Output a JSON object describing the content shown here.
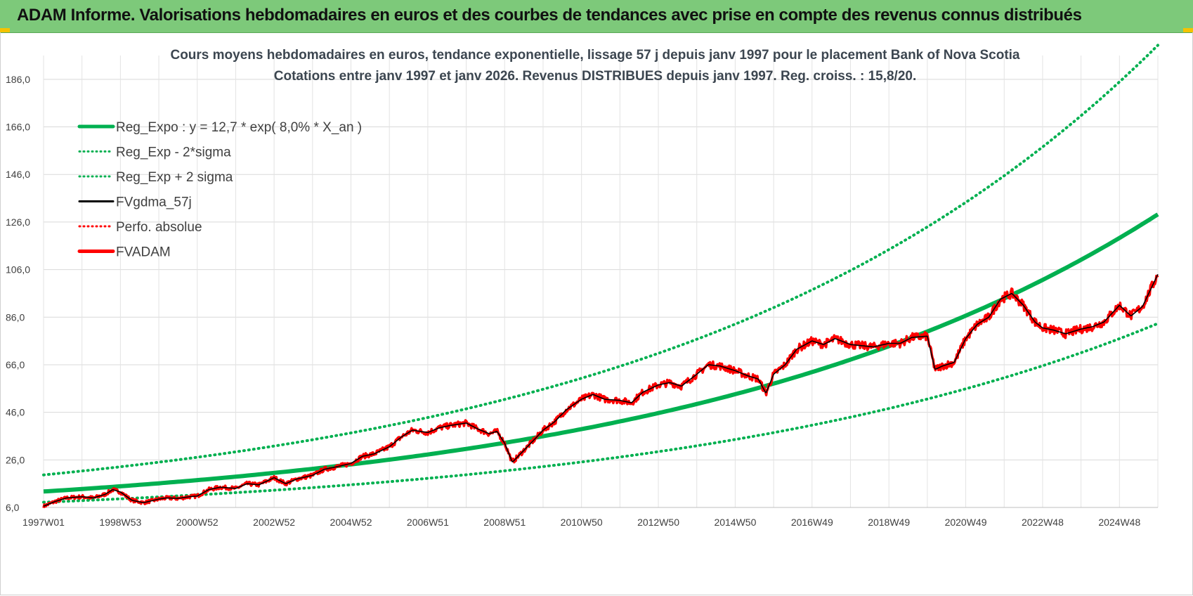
{
  "header": {
    "title": "ADAM Informe. Valorisations hebdomadaires en euros et des courbes de tendances avec prise en compte des revenus connus distribués"
  },
  "chart_data": {
    "type": "line",
    "title_line1": "Cours moyens hebdomadaires en euros, tendance exponentielle, lissage 57 j depuis janv 1997 pour le placement Bank of Nova Scotia",
    "title_line2": "Cotations entre janv 1997 et janv 2026. Revenus DISTRIBUES depuis janv 1997. Reg. croiss. : 15,8/20.",
    "xlim": [
      1997.0,
      2026.0
    ],
    "ylim": [
      6.0,
      196.0
    ],
    "y_ticks": [
      6.0,
      26.0,
      46.0,
      66.0,
      86.0,
      106.0,
      126.0,
      146.0,
      166.0,
      186.0
    ],
    "y_tick_labels": [
      "6,0",
      "26,0",
      "46,0",
      "66,0",
      "86,0",
      "106,0",
      "126,0",
      "146,0",
      "166,0",
      "186,0"
    ],
    "x_ticks": [
      1997.0,
      1999.0,
      2001.0,
      2003.0,
      2005.0,
      2007.0,
      2009.0,
      2011.0,
      2013.0,
      2015.0,
      2017.0,
      2019.0,
      2021.0,
      2023.0,
      2025.0
    ],
    "x_tick_labels": [
      "1997W01",
      "1998W53",
      "2000W52",
      "2002W52",
      "2004W52",
      "2006W51",
      "2008W51",
      "2010W50",
      "2012W50",
      "2014W50",
      "2016W49",
      "2018W49",
      "2020W49",
      "2022W48",
      "2024W48"
    ],
    "grid": true,
    "legend_position": "top-left",
    "regression": {
      "a": 12.7,
      "rate": 0.08,
      "lower_factor": 0.645,
      "upper_factor": 1.55
    },
    "series": [
      {
        "name": "Reg_Expo : y = 12,7 * exp( 8,0% *  X_an )",
        "color": "#00b050",
        "style": "solid-thick"
      },
      {
        "name": "Reg_Exp - 2*sigma",
        "color": "#00b050",
        "style": "dotted"
      },
      {
        "name": "Reg_Exp + 2 sigma",
        "color": "#00b050",
        "style": "dotted"
      },
      {
        "name": "FVgdma_57j",
        "color": "#000000",
        "style": "solid"
      },
      {
        "name": "Perfo. absolue",
        "color": "#ff0000",
        "style": "dotted"
      },
      {
        "name": "FVADAM",
        "color": "#ff0000",
        "style": "solid-thick"
      }
    ],
    "fvadam": {
      "x": [
        1997.0,
        1997.3,
        1997.6,
        1998.0,
        1998.3,
        1998.6,
        1998.8,
        1999.0,
        1999.3,
        1999.6,
        2000.0,
        2000.2,
        2000.5,
        2000.8,
        2001.0,
        2001.3,
        2001.6,
        2002.0,
        2002.3,
        2002.6,
        2002.8,
        2003.0,
        2003.3,
        2003.6,
        2004.0,
        2004.3,
        2004.6,
        2005.0,
        2005.3,
        2005.6,
        2006.0,
        2006.3,
        2006.6,
        2007.0,
        2007.3,
        2007.6,
        2008.0,
        2008.3,
        2008.6,
        2008.8,
        2009.0,
        2009.2,
        2009.5,
        2009.8,
        2010.0,
        2010.3,
        2010.6,
        2011.0,
        2011.3,
        2011.6,
        2012.0,
        2012.3,
        2012.6,
        2013.0,
        2013.3,
        2013.6,
        2014.0,
        2014.3,
        2014.6,
        2015.0,
        2015.3,
        2015.6,
        2015.8,
        2016.0,
        2016.3,
        2016.6,
        2017.0,
        2017.3,
        2017.6,
        2018.0,
        2018.3,
        2018.6,
        2019.0,
        2019.3,
        2019.6,
        2020.0,
        2020.2,
        2020.4,
        2020.7,
        2021.0,
        2021.3,
        2021.6,
        2021.9,
        2022.2,
        2022.5,
        2022.8,
        2023.0,
        2023.3,
        2023.6,
        2024.0,
        2024.3,
        2024.6,
        2025.0,
        2025.3,
        2025.6,
        2026.0
      ],
      "y": [
        6.5,
        8.5,
        10.0,
        10.5,
        10.0,
        11.5,
        13.5,
        12.5,
        9.0,
        8.0,
        9.5,
        10.0,
        9.8,
        10.5,
        10.8,
        13.5,
        14.5,
        14.0,
        16.0,
        15.5,
        17.0,
        18.5,
        16.0,
        18.0,
        19.5,
        22.0,
        23.0,
        24.5,
        27.5,
        28.5,
        31.5,
        35.5,
        38.5,
        37.5,
        39.5,
        40.5,
        41.5,
        39.0,
        37.0,
        38.0,
        33.0,
        25.0,
        30.0,
        35.0,
        38.5,
        42.0,
        47.0,
        51.5,
        53.5,
        51.5,
        51.0,
        50.0,
        54.5,
        57.5,
        58.5,
        57.0,
        62.0,
        66.0,
        65.5,
        63.5,
        61.5,
        60.0,
        54.0,
        62.0,
        66.0,
        72.5,
        76.0,
        74.5,
        77.0,
        74.5,
        74.0,
        73.5,
        75.0,
        75.0,
        77.5,
        78.0,
        64.0,
        65.5,
        67.0,
        77.0,
        83.0,
        86.0,
        93.5,
        96.0,
        91.0,
        84.0,
        81.5,
        80.5,
        79.0,
        81.0,
        82.0,
        84.0,
        91.0,
        86.5,
        90.5,
        104.0
      ]
    }
  }
}
